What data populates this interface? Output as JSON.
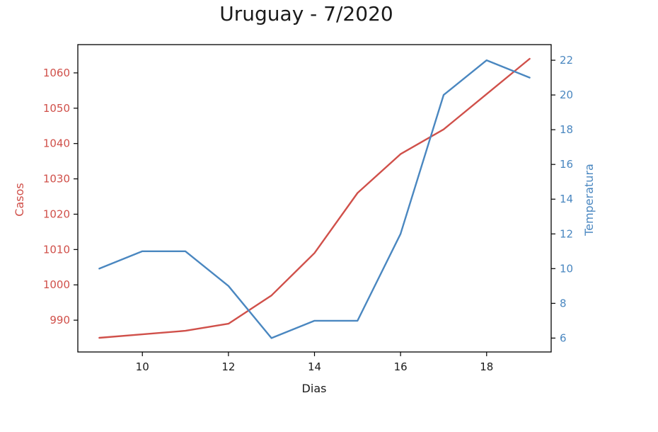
{
  "chart_data": {
    "type": "line",
    "title": "Uruguay - 7/2020",
    "xlabel": "Dias",
    "xlim": [
      8.5,
      19.5
    ],
    "xticks": [
      10,
      12,
      14,
      16,
      18
    ],
    "x": [
      9,
      10,
      11,
      12,
      13,
      14,
      15,
      16,
      17,
      18,
      19
    ],
    "axes": {
      "left": {
        "label": "Casos",
        "color": "#d0504a",
        "lim": [
          981,
          1068
        ],
        "ticks": [
          990,
          1000,
          1010,
          1020,
          1030,
          1040,
          1050,
          1060
        ]
      },
      "right": {
        "label": "Temperatura",
        "color": "#4a87c0",
        "lim": [
          5.2,
          22.9
        ],
        "ticks": [
          6,
          8,
          10,
          12,
          14,
          16,
          18,
          20,
          22
        ]
      }
    },
    "series": [
      {
        "axis": "left",
        "color": "#d0504a",
        "values": [
          985,
          986,
          987,
          989,
          997,
          1009,
          1026,
          1037,
          1044,
          1054,
          1064
        ]
      },
      {
        "axis": "right",
        "color": "#4a87c0",
        "values": [
          10,
          11,
          11,
          9,
          6,
          7,
          7,
          12,
          20,
          22,
          21
        ]
      }
    ]
  }
}
